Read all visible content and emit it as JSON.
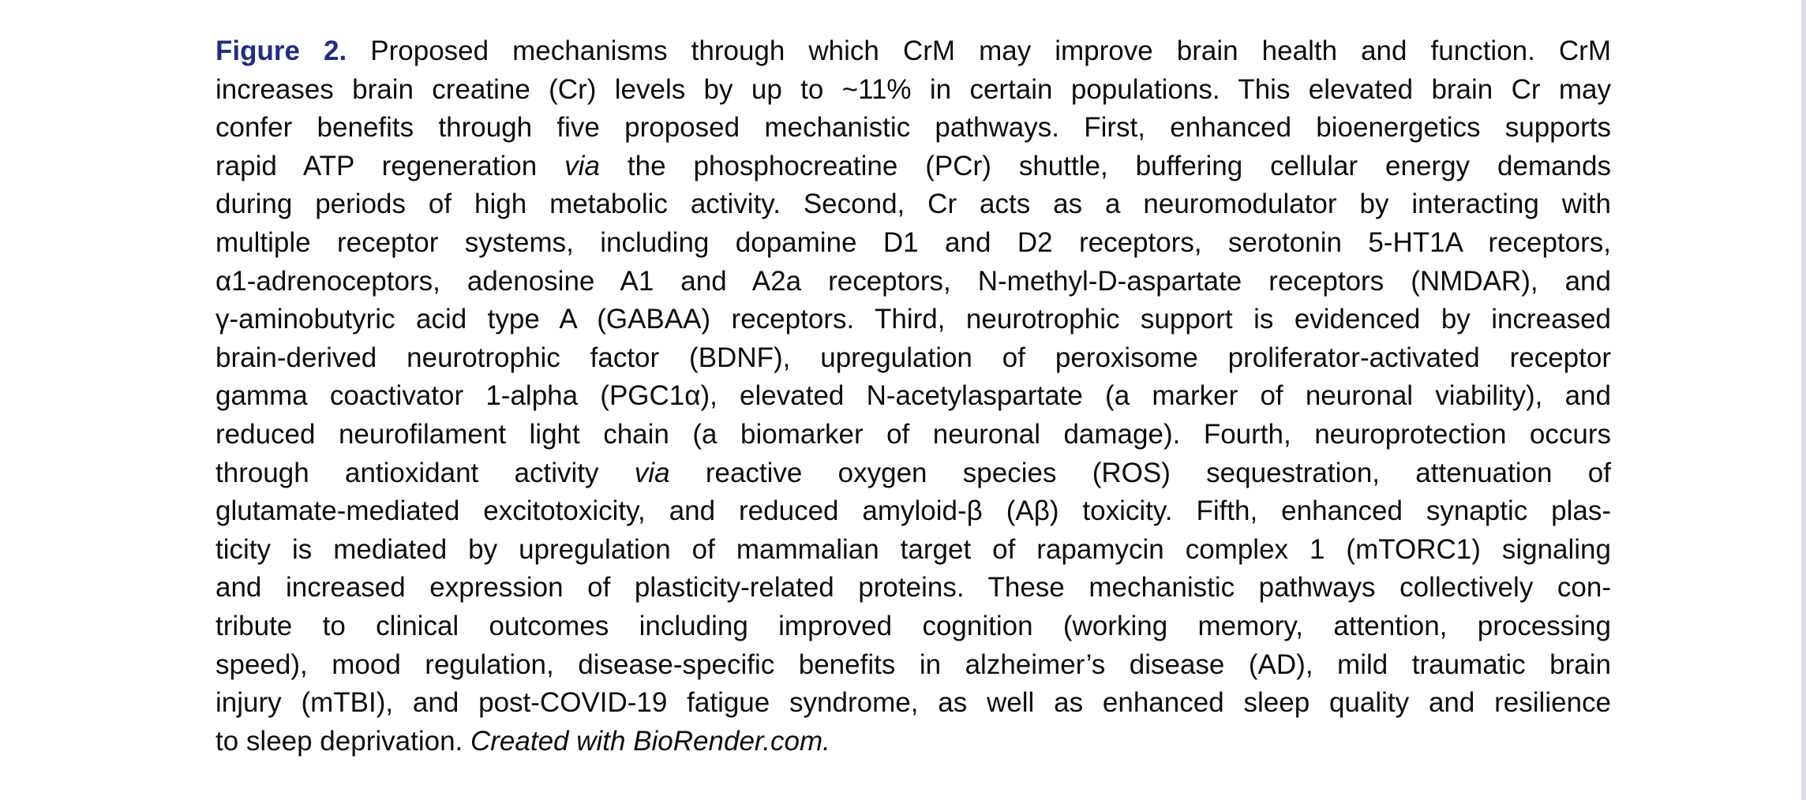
{
  "colors": {
    "figure_label": "#222c81",
    "body_text": "#0d0d0d",
    "background": "#ffffff",
    "page_edge_strip": "#dcdde3"
  },
  "caption": {
    "label": "Figure 2.",
    "lines": [
      {
        "segments": [
          {
            "text": "Figure 2."
          },
          {
            "text": " Proposed mechanisms through which CrM may improve brain health and function. CrM"
          }
        ]
      },
      {
        "segments": [
          {
            "text": "increases brain creatine (Cr) levels by up to ~11% in certain populations. This elevated brain Cr may"
          }
        ]
      },
      {
        "segments": [
          {
            "text": "confer benefits through five proposed mechanistic pathways. First, enhanced bioenergetics supports"
          }
        ]
      },
      {
        "segments": [
          {
            "text": "rapid ATP regeneration "
          },
          {
            "text": "via"
          },
          {
            "text": " the phosphocreatine (PCr) shuttle, buffering cellular energy demands"
          }
        ]
      },
      {
        "segments": [
          {
            "text": "during periods of high metabolic activity. Second, Cr acts as a neuromodulator by interacting with"
          }
        ]
      },
      {
        "segments": [
          {
            "text": "multiple receptor systems, including dopamine D1 and D2 receptors, serotonin 5-HT1A receptors,"
          }
        ]
      },
      {
        "segments": [
          {
            "text": "α1-adrenoceptors, adenosine A1 and A2a receptors, N-methyl-D-aspartate receptors (NMDAR), and"
          }
        ]
      },
      {
        "segments": [
          {
            "text": "γ-aminobutyric acid type A (GABAA) receptors. Third, neurotrophic support is evidenced by increased"
          }
        ]
      },
      {
        "segments": [
          {
            "text": "brain-derived neurotrophic factor (BDNF), upregulation of peroxisome proliferator-activated receptor"
          }
        ]
      },
      {
        "segments": [
          {
            "text": "gamma coactivator 1-alpha (PGC1α), elevated N-acetylaspartate (a marker of neuronal viability), and"
          }
        ]
      },
      {
        "segments": [
          {
            "text": "reduced neurofilament light chain (a biomarker of neuronal damage). Fourth, neuroprotection occurs"
          }
        ]
      },
      {
        "segments": [
          {
            "text": "through antioxidant activity "
          },
          {
            "text": "via"
          },
          {
            "text": " reactive oxygen species (ROS) sequestration, attenuation of"
          }
        ]
      },
      {
        "segments": [
          {
            "text": "glutamate-mediated excitotoxicity, and reduced amyloid-β (Aβ) toxicity. Fifth, enhanced synaptic plas-"
          }
        ]
      },
      {
        "segments": [
          {
            "text": "ticity is mediated by upregulation of mammalian target of rapamycin complex 1 (mTORC1) signaling"
          }
        ]
      },
      {
        "segments": [
          {
            "text": "and increased expression of plasticity-related proteins. These mechanistic pathways collectively con-"
          }
        ]
      },
      {
        "segments": [
          {
            "text": "tribute to clinical outcomes including improved cognition (working memory, attention, processing"
          }
        ]
      },
      {
        "segments": [
          {
            "text": "speed), mood regulation, disease-specific benefits in alzheimer’s disease (AD), mild traumatic brain"
          }
        ]
      },
      {
        "segments": [
          {
            "text": "injury (mTBI), and post-COVID-19 fatigue syndrome, as well as enhanced sleep quality and resilience"
          }
        ]
      },
      {
        "segments": [
          {
            "text": "to sleep deprivation. "
          },
          {
            "text": "Created with BioRender.com."
          }
        ]
      }
    ]
  }
}
